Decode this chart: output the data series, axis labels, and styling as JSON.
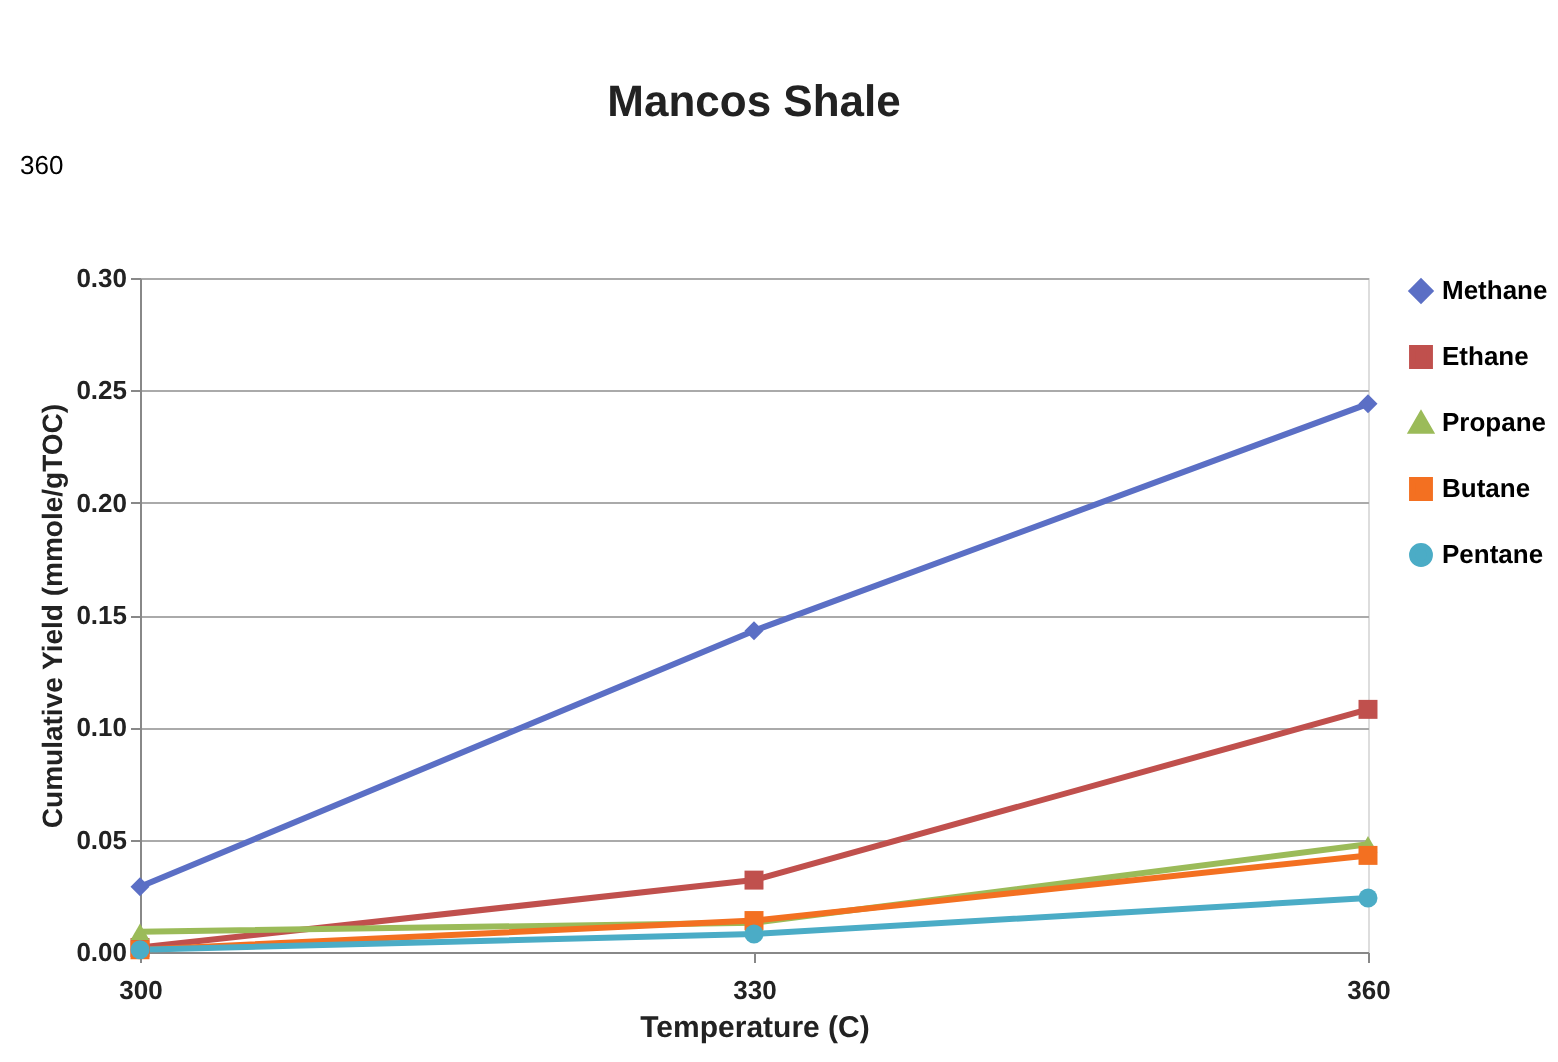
{
  "chart_data": {
    "type": "line",
    "title": "Mancos Shale",
    "xlabel": "Temperature (C)",
    "ylabel": "Cumulative Yield (mmole/gTOC)",
    "annotations": [
      "360"
    ],
    "x": [
      300,
      330,
      360
    ],
    "xlim": [
      300,
      360
    ],
    "xticks": [
      300,
      330,
      360
    ],
    "ylim": [
      0,
      0.3
    ],
    "yticks": [
      {
        "value": 0,
        "label": "0.00"
      },
      {
        "value": 0.05,
        "label": "0.05"
      },
      {
        "value": 0.1,
        "label": "0.10"
      },
      {
        "value": 0.15,
        "label": "0.15"
      },
      {
        "value": 0.2,
        "label": "0.20"
      },
      {
        "value": 0.25,
        "label": "0.25"
      },
      {
        "value": 0.3,
        "label": "0.30"
      }
    ],
    "grid": "y",
    "legend": "right",
    "series": [
      {
        "name": "Methane",
        "color": "#5b6fc5",
        "marker": "diamond",
        "values": [
          0.029,
          0.143,
          0.244
        ]
      },
      {
        "name": "Ethane",
        "color": "#c0504d",
        "marker": "square",
        "values": [
          0.002,
          0.032,
          0.108
        ]
      },
      {
        "name": "Propane",
        "color": "#9bbb59",
        "marker": "triangle",
        "values": [
          0.009,
          0.013,
          0.048
        ]
      },
      {
        "name": "Butane",
        "color": "#f37021",
        "marker": "square",
        "values": [
          0.001,
          0.014,
          0.043
        ]
      },
      {
        "name": "Pentane",
        "color": "#4bacc6",
        "marker": "circle",
        "values": [
          0.001,
          0.008,
          0.024
        ]
      }
    ]
  }
}
